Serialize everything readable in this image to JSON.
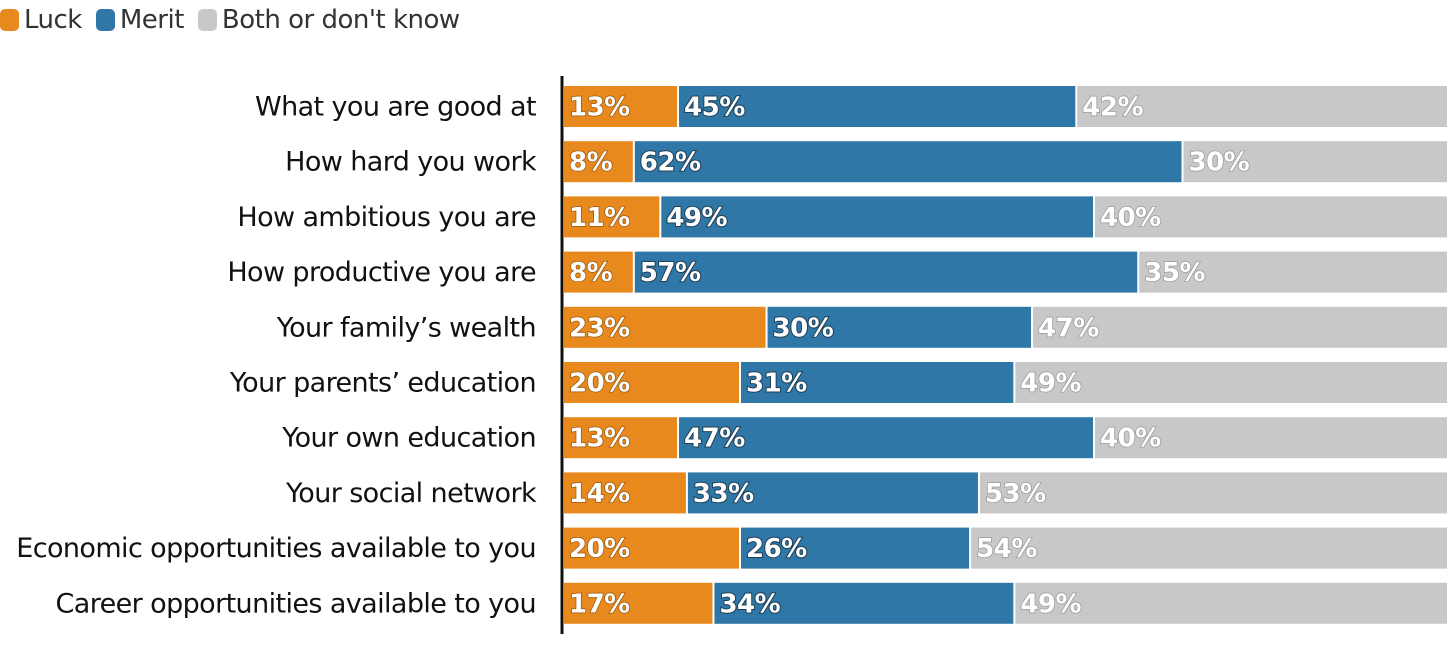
{
  "legend": [
    {
      "label": "Luck",
      "color": "#E8891E"
    },
    {
      "label": "Merit",
      "color": "#2E77A6"
    },
    {
      "label": "Both or don't know",
      "color": "#C8C8C8"
    }
  ],
  "chart_data": {
    "type": "bar",
    "orientation": "horizontal",
    "stacked": true,
    "title": "",
    "xlabel": "",
    "ylabel": "",
    "xlim": [
      0,
      100
    ],
    "legend_position": "top-left",
    "grid": false,
    "categories": [
      "What you are good at",
      "How hard you work",
      "How ambitious you are",
      "How productive you are",
      "Your family’s wealth",
      "Your parents’ education",
      "Your own education",
      "Your social network",
      "Economic opportunities available to you",
      "Career opportunities available to you"
    ],
    "series": [
      {
        "name": "Luck",
        "color": "#E8891E",
        "values": [
          13,
          8,
          11,
          8,
          23,
          20,
          13,
          14,
          20,
          17
        ]
      },
      {
        "name": "Merit",
        "color": "#2E77A6",
        "values": [
          45,
          62,
          49,
          57,
          30,
          31,
          47,
          33,
          26,
          34
        ]
      },
      {
        "name": "Both or don't know",
        "color": "#C8C8C8",
        "values": [
          42,
          30,
          40,
          35,
          47,
          49,
          40,
          53,
          54,
          49
        ]
      }
    ],
    "value_suffix": "%"
  }
}
